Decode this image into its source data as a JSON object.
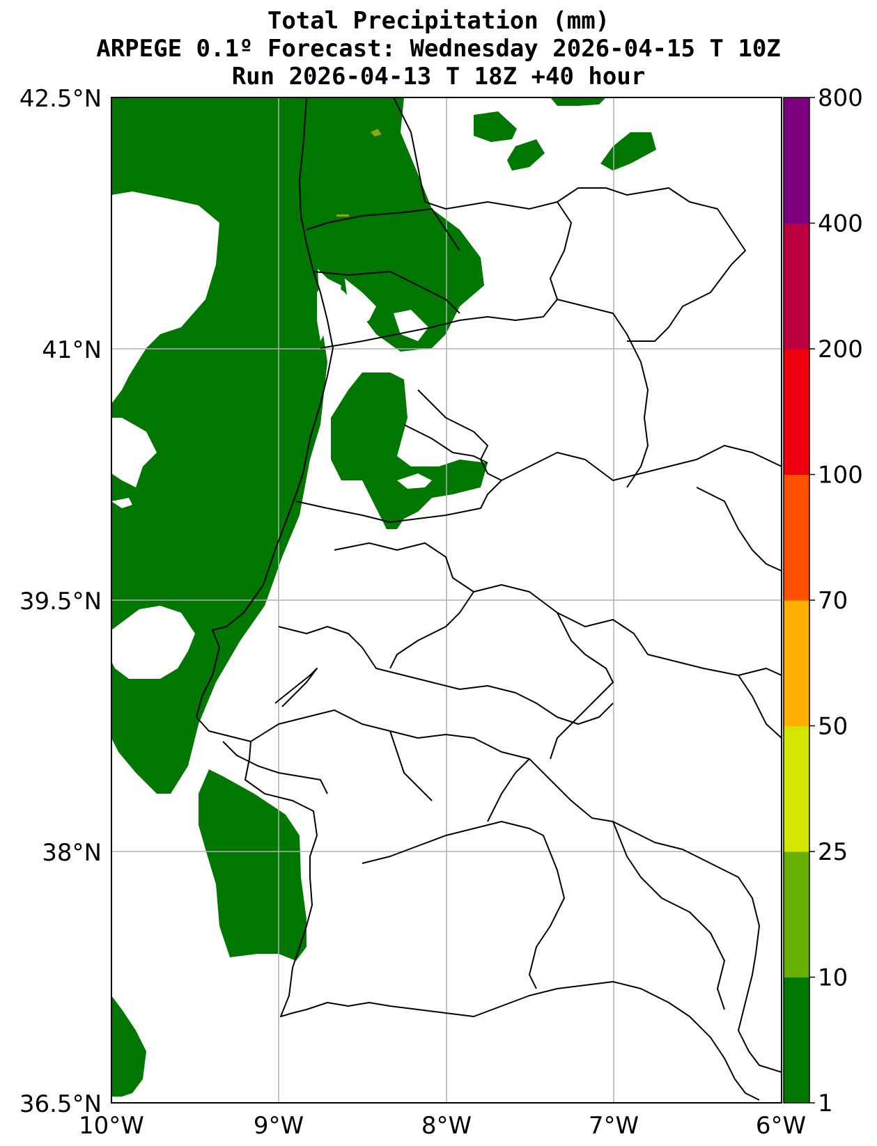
{
  "title": {
    "line1": "Total Precipitation (mm)",
    "line2": "ARPEGE 0.1º Forecast: Wednesday 2026-04-15 T 10Z",
    "line3": "Run 2026-04-13 T 18Z +40 hour"
  },
  "axes": {
    "lat_labels": [
      "42.5°N",
      "41°N",
      "39.5°N",
      "38°N",
      "36.5°N"
    ],
    "lon_labels": [
      "10°W",
      "9°W",
      "8°W",
      "7°W",
      "6°W"
    ],
    "lat_range": [
      36.5,
      42.5
    ],
    "lon_range": [
      -10,
      -6
    ],
    "grid": true
  },
  "colorbar": {
    "levels": [
      "1",
      "10",
      "25",
      "50",
      "70",
      "100",
      "200",
      "400",
      "800"
    ],
    "colors": [
      "#007700",
      "#66b000",
      "#d4e600",
      "#ffb000",
      "#ff5000",
      "#ee0010",
      "#bb0040",
      "#7d0080"
    ]
  },
  "colors": {
    "precip_1_10": "#007700",
    "border": "#000000",
    "grid": "#b0b0b0"
  }
}
